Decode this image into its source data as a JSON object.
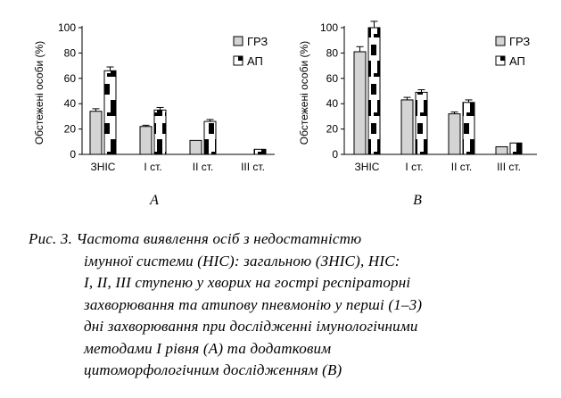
{
  "figure": {
    "caption_lines": [
      "Рис. 3. Частота виявлення осіб з недостатністю",
      "імунної системи (НІС): загальною (ЗНІС), НІС:",
      "I, II, III ступеню у хворих на гострі респіраторні",
      "захворювання та атипову пневмонію у перші (1–3)",
      "дні захворювання при дослідженні імунологічними",
      "методами I рівня (А) та додатковим",
      "цитоморфологічним дослідженням (В)"
    ]
  },
  "chart_data": [
    {
      "type": "bar",
      "panel_label": "А",
      "ylabel": "Обстежені особи  (%)",
      "ylim": [
        0,
        100
      ],
      "yticks": [
        0,
        20,
        40,
        60,
        80,
        100
      ],
      "categories": [
        "ЗНІС",
        "I ст.",
        "II ст.",
        "III ст."
      ],
      "series": [
        {
          "name": "ГРЗ",
          "values": [
            34,
            22,
            11,
            0
          ],
          "errors": [
            2,
            1,
            0,
            0
          ],
          "color": "#d4d4d4"
        },
        {
          "name": "АП",
          "values": [
            66,
            35,
            26,
            4
          ],
          "errors": [
            3,
            2,
            1.5,
            0
          ],
          "color": "#ffffff"
        }
      ],
      "legend_position": "top-right",
      "grid": false
    },
    {
      "type": "bar",
      "panel_label": "В",
      "ylabel": "Обстежені особи  (%)",
      "ylim": [
        0,
        100
      ],
      "yticks": [
        0,
        20,
        40,
        60,
        80,
        100
      ],
      "categories": [
        "ЗНІС",
        "I ст.",
        "II ст.",
        "III ст."
      ],
      "series": [
        {
          "name": "ГРЗ",
          "values": [
            81,
            43,
            32,
            6
          ],
          "errors": [
            4,
            2,
            1.5,
            0
          ],
          "color": "#d4d4d4"
        },
        {
          "name": "АП",
          "values": [
            100,
            49,
            41,
            9
          ],
          "errors": [
            5,
            2,
            2,
            0
          ],
          "color": "#ffffff"
        }
      ],
      "legend_position": "top-right",
      "grid": false
    }
  ]
}
